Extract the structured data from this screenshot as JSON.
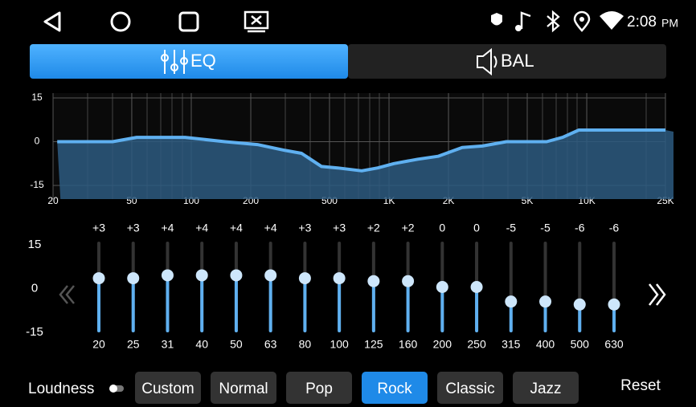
{
  "status_bar": {
    "time": "2:08",
    "meridiem": "PM"
  },
  "tabs": [
    {
      "label": "EQ",
      "active": true
    },
    {
      "label": "BAL",
      "active": false
    }
  ],
  "response": {
    "log_x": true,
    "xlim": [
      20,
      25000
    ],
    "ylim": [
      -15,
      15
    ],
    "yticks": [
      15,
      0,
      -15
    ],
    "xticks": [
      20,
      50,
      100,
      200,
      500,
      {
        "value": 1000,
        "label": "1K"
      },
      {
        "value": 2000,
        "label": "2K"
      },
      {
        "value": 5000,
        "label": "5K"
      },
      {
        "value": 10000,
        "label": "10K"
      },
      {
        "value": 25000,
        "label": "25K"
      }
    ],
    "x": [
      21,
      40,
      53,
      93,
      148,
      216,
      299,
      361,
      456,
      550,
      728,
      877,
      1058,
      1402,
      1770,
      2345,
      2965,
      3925,
      6265,
      7553,
      9118,
      25000
    ],
    "values": [
      0,
      0,
      1.5,
      1.5,
      0,
      -1,
      -3,
      -4,
      -8.5,
      -9,
      -10,
      -9,
      -7.5,
      -6,
      -5,
      -2,
      -1.5,
      0,
      0,
      1.5,
      4,
      4
    ],
    "color": "#5fb0f0"
  },
  "bands": {
    "ylim": [
      -15,
      15
    ],
    "yticks": [
      15,
      0,
      -15
    ],
    "frequencies": [
      20,
      25,
      31,
      40,
      50,
      63,
      80,
      100,
      125,
      160,
      200,
      250,
      315,
      400,
      500,
      630
    ],
    "gains": [
      3,
      3,
      4,
      4,
      4,
      4,
      3,
      3,
      2,
      2,
      0,
      0,
      -5,
      -5,
      -6,
      -6
    ],
    "gain_labels": [
      "+3",
      "+3",
      "+4",
      "+4",
      "+4",
      "+4",
      "+3",
      "+3",
      "+2",
      "+2",
      "0",
      "0",
      "-5",
      "-5",
      "-6",
      "-6"
    ],
    "color": "#5fb0f0"
  },
  "loudness": {
    "label": "Loudness",
    "on": false
  },
  "presets": {
    "items": [
      "Custom",
      "Normal",
      "Pop",
      "Rock",
      "Classic",
      "Jazz"
    ],
    "active": 3
  },
  "reset": "Reset"
}
